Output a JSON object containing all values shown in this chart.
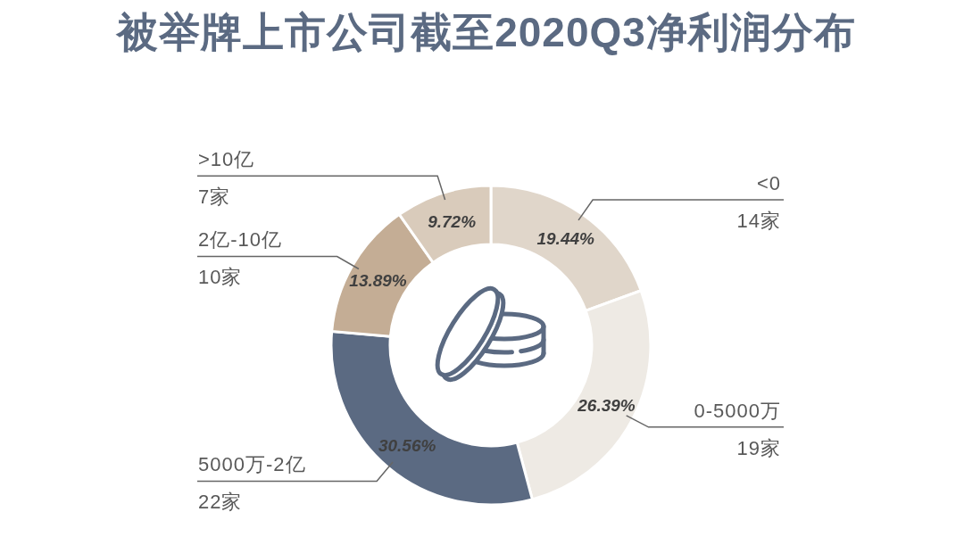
{
  "chart_data": {
    "type": "donut",
    "title": "被举牌上市公司截至2020Q3净利润分布",
    "categories": [
      "<0",
      "0-5000万",
      "5000万-2亿",
      "2亿-10亿",
      ">10亿"
    ],
    "values": [
      19.44,
      26.39,
      30.56,
      13.89,
      9.72
    ],
    "colors": [
      "#e0d6ca",
      "#eeeae4",
      "#5b6a82",
      "#c4ad95",
      "#d9cbbb"
    ],
    "value_labels": [
      "19.44%",
      "26.39%",
      "30.56%",
      "13.89%",
      "9.72%"
    ],
    "annotations": [
      {
        "text": "14家",
        "x": "<0"
      },
      {
        "text": "19家",
        "x": "0-5000万"
      },
      {
        "text": "22家",
        "x": "5000万-2亿"
      },
      {
        "text": "10家",
        "x": "2亿-10亿"
      },
      {
        "text": "7家",
        "x": ">10亿"
      }
    ]
  }
}
